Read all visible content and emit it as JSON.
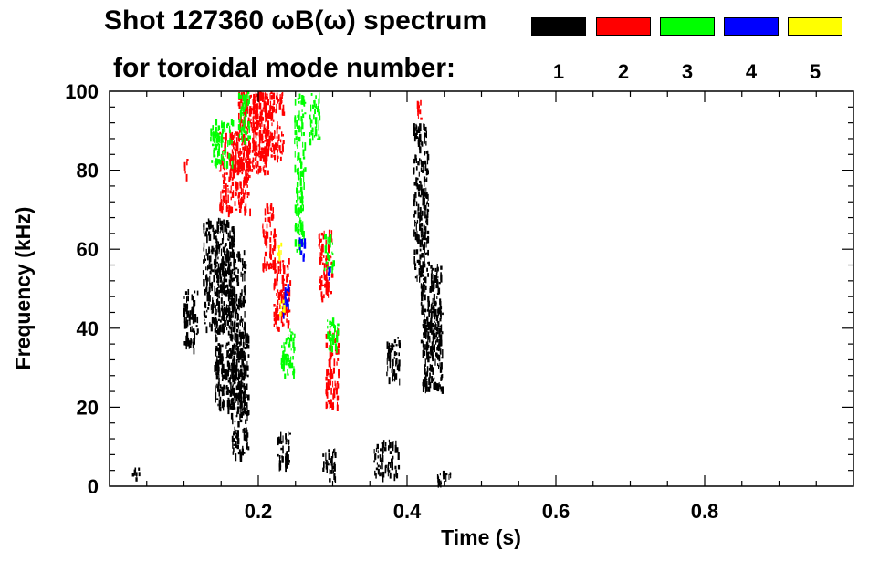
{
  "chart_data": {
    "type": "heatmap",
    "title": "Shot 127360 ωB(ω) spectrum",
    "subtitle": "for toroidal mode number:",
    "xlabel": "Time (s)",
    "ylabel": "Frequency (kHz)",
    "xlim": [
      0.0,
      1.0
    ],
    "ylim": [
      0,
      100
    ],
    "x_ticks": [
      "0.2",
      "0.4",
      "0.6",
      "0.8"
    ],
    "x_tick_values": [
      0.2,
      0.4,
      0.6,
      0.8
    ],
    "y_ticks": [
      "0",
      "20",
      "40",
      "60",
      "80",
      "100"
    ],
    "y_tick_values": [
      0,
      20,
      40,
      60,
      80,
      100
    ],
    "grid": false,
    "legend_position": "top-right",
    "legend": [
      {
        "label": "1",
        "color": "#000000"
      },
      {
        "label": "2",
        "color": "#ff0000"
      },
      {
        "label": "3",
        "color": "#00ff00"
      },
      {
        "label": "4",
        "color": "#0000ff"
      },
      {
        "label": "5",
        "color": "#ffff00"
      }
    ],
    "series": [
      {
        "mode": 1,
        "color": "#000000",
        "regions": [
          {
            "t": [
              0.098,
              0.118
            ],
            "f": [
              35,
              50
            ]
          },
          {
            "t": [
              0.125,
              0.168
            ],
            "f": [
              40,
              68
            ]
          },
          {
            "t": [
              0.14,
              0.182
            ],
            "f": [
              20,
              60
            ]
          },
          {
            "t": [
              0.163,
              0.186
            ],
            "f": [
              8,
              40
            ]
          },
          {
            "t": [
              0.225,
              0.243
            ],
            "f": [
              5,
              14
            ]
          },
          {
            "t": [
              0.286,
              0.303
            ],
            "f": [
              2,
              10
            ]
          },
          {
            "t": [
              0.408,
              0.428
            ],
            "f": [
              53,
              92
            ]
          },
          {
            "t": [
              0.418,
              0.445
            ],
            "f": [
              33,
              57
            ]
          },
          {
            "t": [
              0.42,
              0.447
            ],
            "f": [
              25,
              45
            ]
          },
          {
            "t": [
              0.438,
              0.458
            ],
            "f": [
              1,
              4
            ]
          },
          {
            "t": [
              0.03,
              0.04
            ],
            "f": [
              2,
              5
            ]
          },
          {
            "t": [
              0.355,
              0.388
            ],
            "f": [
              3,
              12
            ]
          },
          {
            "t": [
              0.372,
              0.39
            ],
            "f": [
              27,
              38
            ]
          }
        ]
      },
      {
        "mode": 2,
        "color": "#ff0000",
        "regions": [
          {
            "t": [
              0.1,
              0.104
            ],
            "f": [
              78,
              83
            ]
          },
          {
            "t": [
              0.147,
              0.188
            ],
            "f": [
              70,
              90
            ]
          },
          {
            "t": [
              0.172,
              0.213
            ],
            "f": [
              80,
              100
            ]
          },
          {
            "t": [
              0.192,
              0.233
            ],
            "f": [
              83,
              100
            ]
          },
          {
            "t": [
              0.205,
              0.222
            ],
            "f": [
              55,
              72
            ]
          },
          {
            "t": [
              0.22,
              0.242
            ],
            "f": [
              40,
              58
            ]
          },
          {
            "t": [
              0.28,
              0.3
            ],
            "f": [
              48,
              65
            ]
          },
          {
            "t": [
              0.29,
              0.307
            ],
            "f": [
              20,
              40
            ]
          },
          {
            "t": [
              0.412,
              0.42
            ],
            "f": [
              93,
              98
            ]
          }
        ]
      },
      {
        "mode": 3,
        "color": "#00ff00",
        "regions": [
          {
            "t": [
              0.135,
              0.165
            ],
            "f": [
              82,
              93
            ]
          },
          {
            "t": [
              0.172,
              0.188
            ],
            "f": [
              88,
              100
            ]
          },
          {
            "t": [
              0.23,
              0.248
            ],
            "f": [
              28,
              40
            ]
          },
          {
            "t": [
              0.248,
              0.262
            ],
            "f": [
              60,
              100
            ]
          },
          {
            "t": [
              0.268,
              0.282
            ],
            "f": [
              88,
              100
            ]
          },
          {
            "t": [
              0.288,
              0.3
            ],
            "f": [
              55,
              64
            ]
          },
          {
            "t": [
              0.292,
              0.306
            ],
            "f": [
              35,
              43
            ]
          }
        ]
      },
      {
        "mode": 4,
        "color": "#0000ff",
        "regions": [
          {
            "t": [
              0.232,
              0.24
            ],
            "f": [
              44,
              52
            ]
          },
          {
            "t": [
              0.254,
              0.262
            ],
            "f": [
              58,
              63
            ]
          },
          {
            "t": [
              0.292,
              0.298
            ],
            "f": [
              52,
              56
            ]
          }
        ]
      },
      {
        "mode": 5,
        "color": "#ffff00",
        "regions": [
          {
            "t": [
              0.225,
              0.232
            ],
            "f": [
              58,
              62
            ]
          },
          {
            "t": [
              0.228,
              0.234
            ],
            "f": [
              44,
              48
            ]
          }
        ]
      }
    ]
  }
}
